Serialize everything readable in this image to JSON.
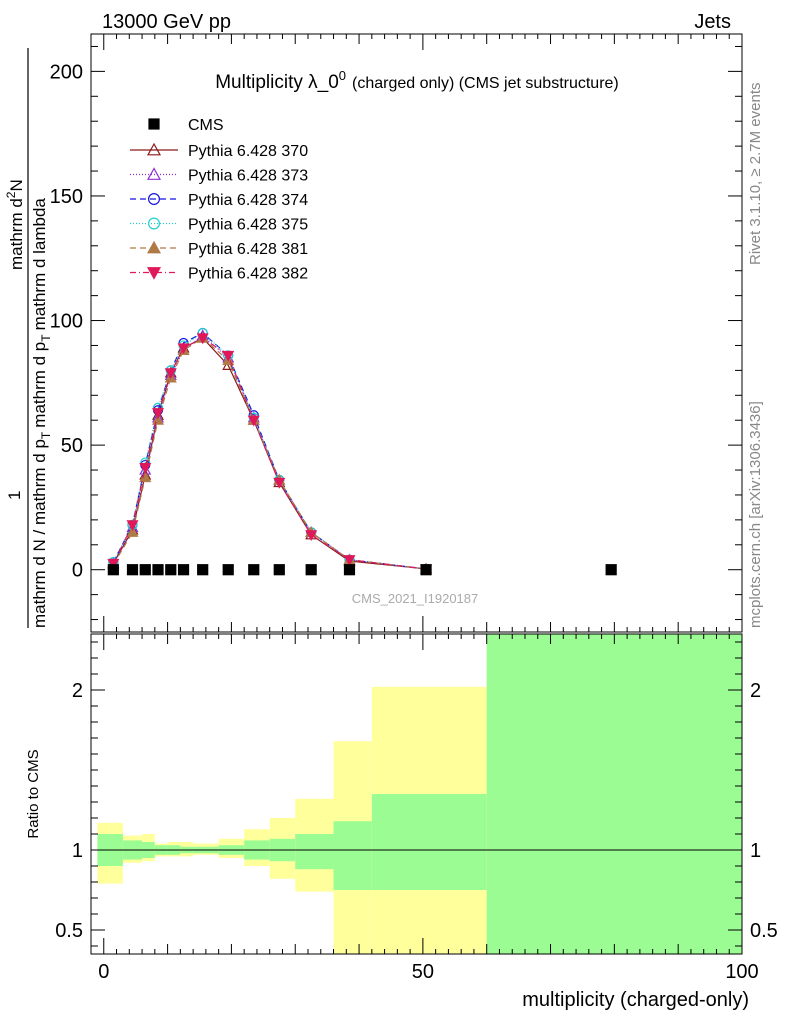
{
  "header": {
    "energy": "13000 GeV pp",
    "category": "Jets",
    "side_top": "Rivet 3.1.10, ≥ 2.7M events",
    "side_bottom": "mcplots.cern.ch [arXiv:1306.3436]"
  },
  "chart_data": [
    {
      "type": "line",
      "title_main": "Multiplicity λ_0",
      "title_sup": "0",
      "title_sub": "(charged only) (CMS jet substructure)",
      "watermark": "CMS_2021_I1920187",
      "ylabel_frac_num": "1",
      "ylabel_frac_den": "mathrm d N / mathrm d p_T mathrm d lambda",
      "ylabel_num": "mathrm d²N / mathrm d p_T mathrm d lambda",
      "ylabel_parts": {
        "den": "mathrm d N / mathrm d p",
        "den_sub": "T",
        "den_tail": "mathrm d p",
        "den_sub2": "T",
        "den_end": "mathrm d lambda",
        "num": "mathrm d",
        "num_sup": "2",
        "num_tail": "N"
      },
      "xlim": [
        -2,
        100
      ],
      "ylim": [
        -25,
        215
      ],
      "yticks": [
        0,
        50,
        100,
        150,
        200
      ],
      "yticklabels": [
        "0",
        "50",
        "100",
        "150",
        "200"
      ],
      "legend_position": "top-left",
      "cms": {
        "name": "CMS",
        "x": [
          1.5,
          4.5,
          6.5,
          8.5,
          10.5,
          12.5,
          15.5,
          19.5,
          23.5,
          27.5,
          32.5,
          38.5,
          50.5,
          79.5
        ],
        "y": [
          0,
          0,
          0,
          0,
          0,
          0,
          0,
          0,
          0,
          0,
          0,
          0,
          0,
          0
        ]
      },
      "mc_x": [
        1.5,
        4.5,
        6.5,
        8.5,
        10.5,
        12.5,
        15.5,
        19.5,
        23.5,
        27.5,
        32.5,
        38.5,
        50.5
      ],
      "series": [
        {
          "name": "Pythia 6.428 370",
          "color": "#8b1a1a",
          "dash": "",
          "marker": "triangle-open",
          "values": [
            2.5,
            16,
            38,
            62,
            79,
            89,
            93,
            82,
            60,
            35,
            14,
            3.5,
            0.3
          ]
        },
        {
          "name": "Pythia 6.428 373",
          "color": "#8e2fd8",
          "dash": "1,2",
          "marker": "triangle-open",
          "values": [
            2.5,
            17,
            40,
            61,
            78,
            88,
            94,
            85,
            61,
            36,
            15,
            4,
            0.3
          ]
        },
        {
          "name": "Pythia 6.428 374",
          "color": "#1414e0",
          "dash": "6,4",
          "marker": "circle-open",
          "values": [
            3,
            18,
            42,
            64,
            80,
            91,
            95,
            86,
            62,
            36,
            15,
            4,
            0.3
          ]
        },
        {
          "name": "Pythia 6.428 375",
          "color": "#22cfcf",
          "dash": "1,2",
          "marker": "circle-open",
          "values": [
            3,
            18,
            43,
            65,
            80,
            90,
            95,
            86,
            61,
            36,
            15,
            4,
            0.3
          ]
        },
        {
          "name": "Pythia 6.428 381",
          "color": "#b07a46",
          "dash": "6,4",
          "marker": "triangle-filled",
          "values": [
            2,
            15,
            37,
            60,
            77,
            88,
            93,
            84,
            60,
            36,
            15,
            4,
            0.3
          ]
        },
        {
          "name": "Pythia 6.428 382",
          "color": "#e0185a",
          "dash": "6,3,1,3",
          "marker": "triangle-down-filled",
          "values": [
            2.5,
            18,
            41,
            63,
            79,
            89,
            93,
            86,
            60,
            35,
            14,
            4,
            0.3
          ]
        }
      ]
    },
    {
      "type": "area",
      "ylabel": "Ratio to CMS",
      "xlabel": "multiplicity (charged-only)",
      "xlim": [
        -2,
        100
      ],
      "ylim": [
        0.35,
        2.35
      ],
      "xticks": [
        0,
        50,
        100
      ],
      "xticklabels": [
        "0",
        "50",
        "100"
      ],
      "yticks": [
        0.5,
        1,
        2
      ],
      "yticklabels": [
        "0.5",
        "1",
        "2"
      ],
      "reference": 1,
      "bin_edges": [
        -1,
        3,
        6,
        8,
        10,
        12,
        14,
        18,
        22,
        26,
        30,
        36,
        42,
        60,
        100
      ],
      "band_inner": [
        [
          0.9,
          1.1
        ],
        [
          0.94,
          1.06
        ],
        [
          0.95,
          1.05
        ],
        [
          0.97,
          1.03
        ],
        [
          0.97,
          1.03
        ],
        [
          0.98,
          1.02
        ],
        [
          0.98,
          1.02
        ],
        [
          0.97,
          1.03
        ],
        [
          0.94,
          1.06
        ],
        [
          0.93,
          1.07
        ],
        [
          0.88,
          1.1
        ],
        [
          0.75,
          1.18
        ],
        [
          0.75,
          1.35
        ],
        [
          0.35,
          2.35
        ]
      ],
      "band_outer": [
        [
          0.79,
          1.17
        ],
        [
          0.92,
          1.09
        ],
        [
          0.93,
          1.1
        ],
        [
          0.96,
          1.04
        ],
        [
          0.96,
          1.05
        ],
        [
          0.96,
          1.05
        ],
        [
          0.97,
          1.04
        ],
        [
          0.95,
          1.07
        ],
        [
          0.9,
          1.13
        ],
        [
          0.82,
          1.2
        ],
        [
          0.74,
          1.32
        ],
        [
          0.35,
          1.68
        ],
        [
          0.35,
          2.02
        ],
        [
          0.35,
          2.35
        ]
      ],
      "colors": {
        "inner": "#9cfc94",
        "outer": "#ffff9c"
      }
    }
  ]
}
